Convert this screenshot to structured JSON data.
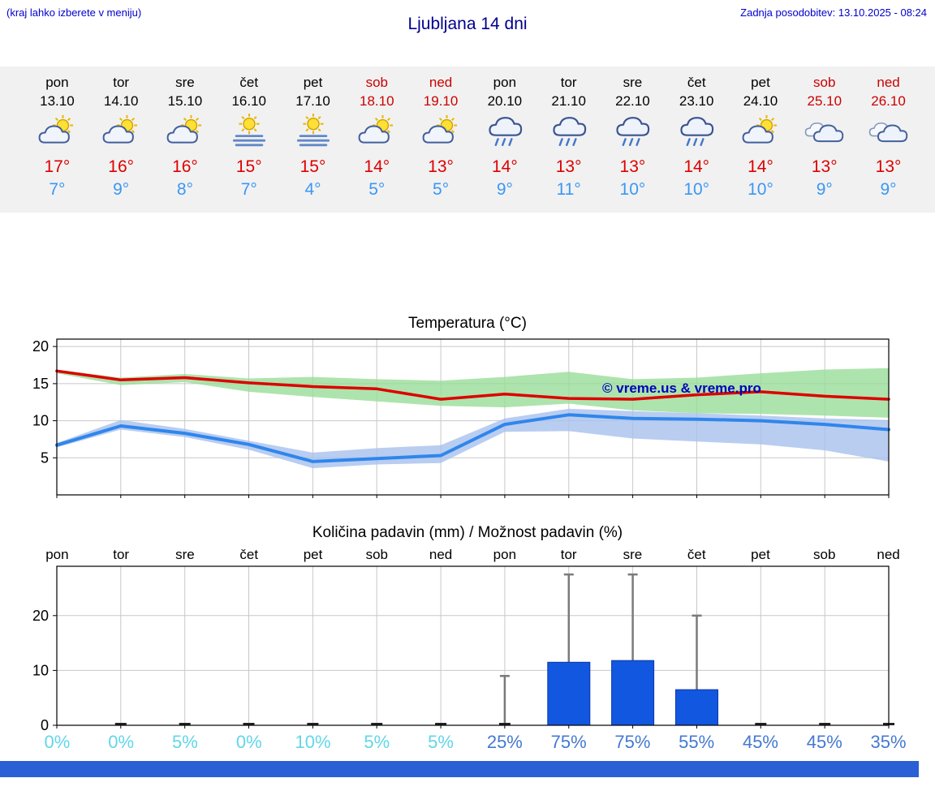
{
  "header": {
    "menu_hint": "(kraj lahko izberete v meniju)",
    "title": "Ljubljana 14 dni",
    "last_update": "Zadnja posodobitev: 13.10.2025 - 08:24"
  },
  "colors": {
    "header_blue": "#0000cd",
    "title_blue": "#00008b",
    "weekend_red": "#cc0000",
    "high_temp_red": "#dd0000",
    "low_temp_blue": "#3b97f5",
    "line_red": "#dd0000",
    "line_blue": "#2f86ec",
    "band_green": "#98dd98",
    "band_blue": "#a8c0ee",
    "bar_fill": "#1257e0",
    "bar_stroke": "#0a36a8",
    "whisker_gray": "#7a7a7a",
    "prob_low": "#63d6e8",
    "prob_high": "#4479d2",
    "footer_bar": "#2a5fd6",
    "strip_bg": "#f1f1f1",
    "watermark_blue": "#0000bb"
  },
  "forecast": {
    "days": [
      {
        "name": "pon",
        "date": "13.10",
        "icon": "partly-sunny",
        "high": "17°",
        "low": "7°",
        "weekend": false
      },
      {
        "name": "tor",
        "date": "14.10",
        "icon": "partly-sunny",
        "high": "16°",
        "low": "9°",
        "weekend": false
      },
      {
        "name": "sre",
        "date": "15.10",
        "icon": "partly-sunny",
        "high": "16°",
        "low": "8°",
        "weekend": false
      },
      {
        "name": "čet",
        "date": "16.10",
        "icon": "sun-fog",
        "high": "15°",
        "low": "7°",
        "weekend": false
      },
      {
        "name": "pet",
        "date": "17.10",
        "icon": "sun-fog",
        "high": "15°",
        "low": "4°",
        "weekend": false
      },
      {
        "name": "sob",
        "date": "18.10",
        "icon": "partly-sunny",
        "high": "14°",
        "low": "5°",
        "weekend": true
      },
      {
        "name": "ned",
        "date": "19.10",
        "icon": "partly-sunny",
        "high": "13°",
        "low": "5°",
        "weekend": true
      },
      {
        "name": "pon",
        "date": "20.10",
        "icon": "rain",
        "high": "14°",
        "low": "9°",
        "weekend": false
      },
      {
        "name": "tor",
        "date": "21.10",
        "icon": "rain",
        "high": "13°",
        "low": "11°",
        "weekend": false
      },
      {
        "name": "sre",
        "date": "22.10",
        "icon": "rain",
        "high": "13°",
        "low": "10°",
        "weekend": false
      },
      {
        "name": "čet",
        "date": "23.10",
        "icon": "rain",
        "high": "14°",
        "low": "10°",
        "weekend": false
      },
      {
        "name": "pet",
        "date": "24.10",
        "icon": "partly-sunny",
        "high": "14°",
        "low": "10°",
        "weekend": false
      },
      {
        "name": "sob",
        "date": "25.10",
        "icon": "cloudy",
        "high": "13°",
        "low": "9°",
        "weekend": true
      },
      {
        "name": "ned",
        "date": "26.10",
        "icon": "cloudy",
        "high": "13°",
        "low": "9°",
        "weekend": true
      }
    ]
  },
  "charts": {
    "temperature": {
      "title": "Temperatura (°C)",
      "watermark": "© vreme.us & vreme.pro"
    },
    "precipitation": {
      "title": "Količina padavin (mm) / Možnost padavin (%)"
    }
  },
  "chart_data": [
    {
      "type": "line",
      "title": "Temperatura (°C)",
      "categories": [
        "pon 13.10",
        "tor 14.10",
        "sre 15.10",
        "čet 16.10",
        "pet 17.10",
        "sob 18.10",
        "ned 19.10",
        "pon 20.10",
        "tor 21.10",
        "sre 22.10",
        "čet 23.10",
        "pet 24.10",
        "sob 25.10",
        "ned 26.10"
      ],
      "ylim": [
        0,
        21
      ],
      "yticks": [
        5,
        10,
        15,
        20
      ],
      "grid": true,
      "series": [
        {
          "name": "max_temp",
          "color": "#dd0000",
          "values": [
            16.7,
            15.5,
            15.8,
            15.1,
            14.6,
            14.3,
            12.9,
            13.6,
            13.0,
            12.9,
            13.5,
            13.9,
            13.3,
            12.9
          ]
        },
        {
          "name": "min_temp",
          "color": "#2f86ec",
          "values": [
            6.7,
            9.3,
            8.3,
            6.8,
            4.5,
            4.9,
            5.3,
            9.5,
            10.8,
            10.3,
            10.2,
            10.0,
            9.5,
            8.8
          ]
        },
        {
          "name": "max_band_upper",
          "color": "#98dd98",
          "values": [
            16.9,
            15.8,
            16.3,
            15.7,
            15.9,
            15.6,
            15.4,
            15.9,
            16.6,
            15.6,
            15.8,
            16.4,
            16.9,
            17.1
          ]
        },
        {
          "name": "max_band_lower",
          "color": "#98dd98",
          "values": [
            16.4,
            14.8,
            15.2,
            13.9,
            13.2,
            12.6,
            12.0,
            11.8,
            12.3,
            11.4,
            11.0,
            10.9,
            10.7,
            10.4
          ]
        },
        {
          "name": "min_band_upper",
          "color": "#a8c0ee",
          "values": [
            7.0,
            10.1,
            8.9,
            7.3,
            5.7,
            6.3,
            6.7,
            10.3,
            11.6,
            11.3,
            11.0,
            10.7,
            10.3,
            10.1
          ]
        },
        {
          "name": "min_band_lower",
          "color": "#a8c0ee",
          "values": [
            6.4,
            8.8,
            7.8,
            6.1,
            3.6,
            4.1,
            4.3,
            8.5,
            8.6,
            7.6,
            7.2,
            6.8,
            6.0,
            4.5
          ]
        }
      ]
    },
    {
      "type": "bar",
      "title": "Količina padavin (mm) / Možnost padavin (%)",
      "categories": [
        "pon",
        "tor",
        "sre",
        "čet",
        "pet",
        "sob",
        "ned",
        "pon",
        "tor",
        "sre",
        "čet",
        "pet",
        "sob",
        "ned"
      ],
      "ylim": [
        0,
        29
      ],
      "yticks": [
        0,
        10,
        20
      ],
      "rain_mm": [
        0,
        0.1,
        0.1,
        0.1,
        0.1,
        0.1,
        0.1,
        0.5,
        11.5,
        11.8,
        6.5,
        0.1,
        0.1,
        0.1
      ],
      "rain_max_mm": [
        0,
        0,
        0,
        0,
        0,
        0,
        0,
        9,
        27.5,
        27.5,
        20,
        0,
        0,
        0
      ],
      "probability_pct": [
        0,
        0,
        5,
        0,
        10,
        5,
        5,
        25,
        75,
        75,
        55,
        45,
        45,
        35
      ]
    }
  ]
}
